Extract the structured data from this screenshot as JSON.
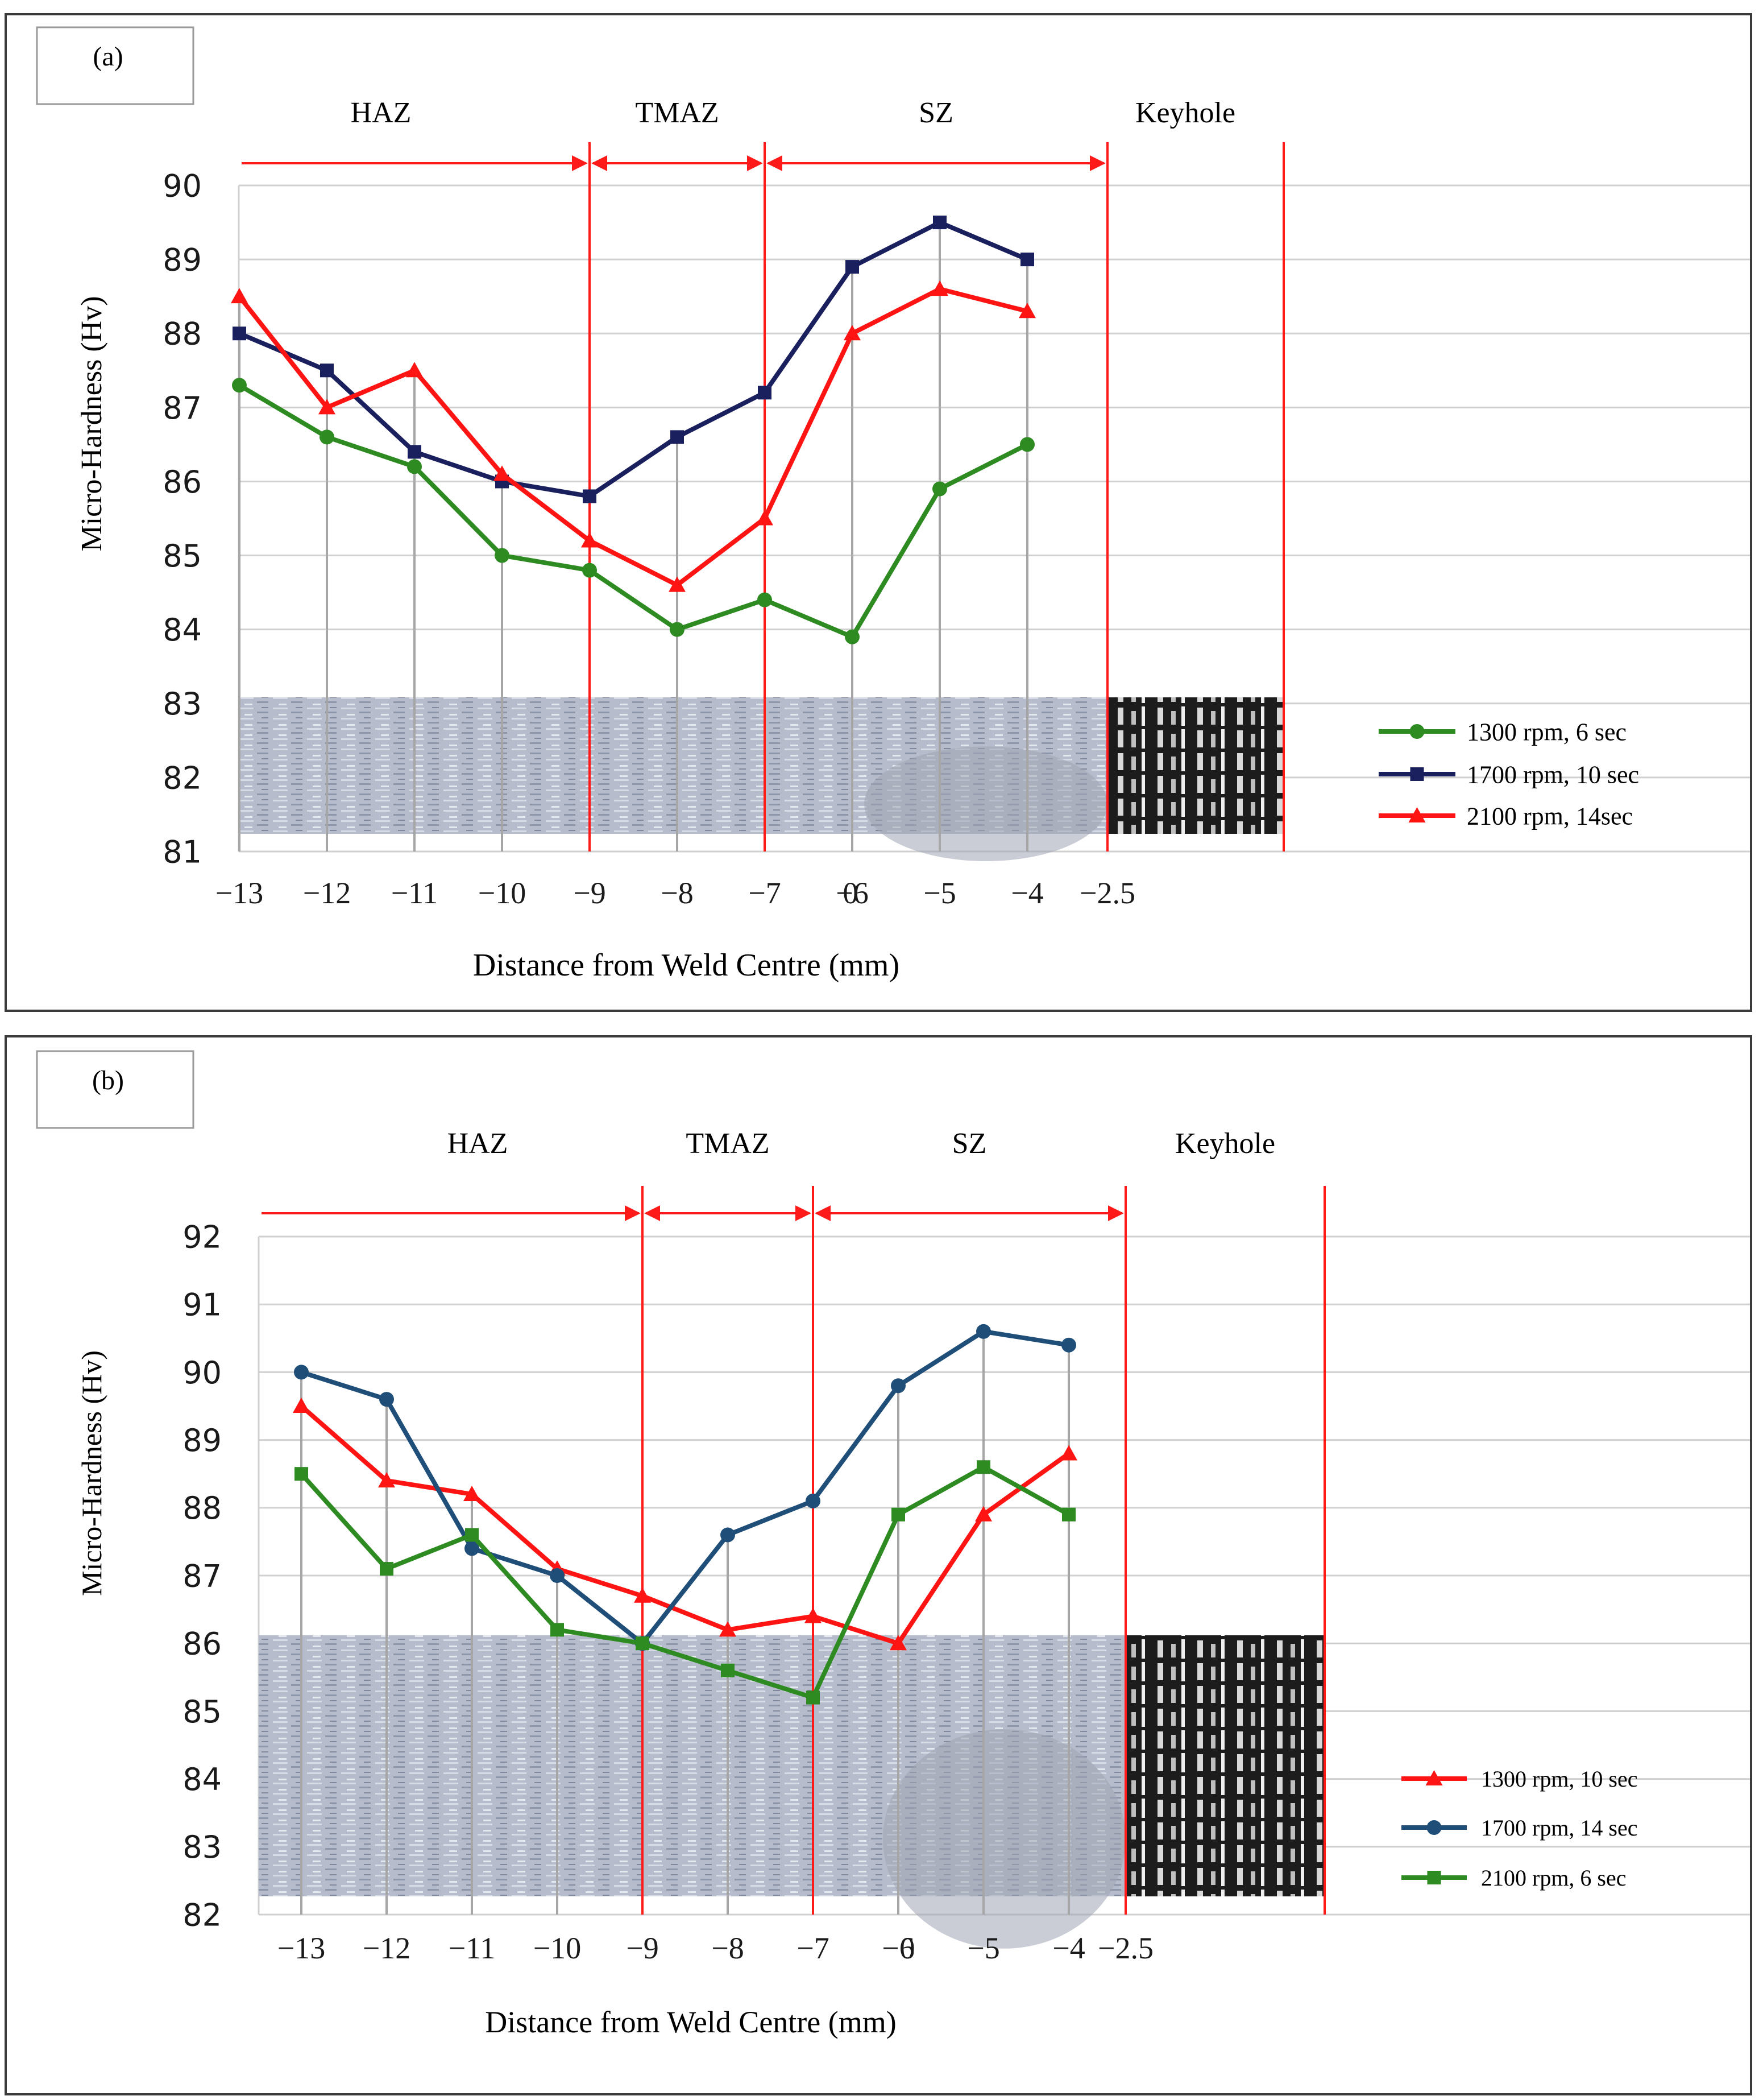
{
  "chart_data": [
    {
      "type": "line",
      "panel_label": "(a)",
      "xlabel": "Distance from Weld Centre (mm)",
      "ylabel": "Micro-Hardness (Hv)",
      "ylim": [
        81,
        90
      ],
      "yticks": [
        81,
        82,
        83,
        84,
        85,
        86,
        87,
        88,
        89,
        90
      ],
      "x_tick_labels": [
        "−13",
        "−12",
        "−11",
        "−10",
        "−9",
        "−8",
        "−7",
        "−6",
        "−5",
        "−4",
        "−2.5",
        "0"
      ],
      "x": [
        -13,
        -12,
        -11,
        -10,
        -9,
        -8,
        -7,
        -6,
        -5,
        -4
      ],
      "zones": [
        {
          "label": "HAZ",
          "from": -13,
          "to": -9
        },
        {
          "label": "TMAZ",
          "from": -9,
          "to": -7
        },
        {
          "label": "SZ",
          "from": -7,
          "to": -2.5
        },
        {
          "label": "Keyhole",
          "from": -2.5,
          "to": 0
        }
      ],
      "series": [
        {
          "name": "1300 rpm, 6 sec",
          "color": "#2e8b22",
          "marker": "circle",
          "values": [
            87.3,
            86.6,
            86.2,
            85.0,
            84.8,
            84.0,
            84.4,
            83.9,
            85.9,
            86.5
          ]
        },
        {
          "name": "1700 rpm, 10 sec",
          "color": "#1a1f5e",
          "marker": "square",
          "values": [
            88.0,
            87.5,
            86.4,
            86.0,
            85.8,
            86.6,
            87.2,
            88.9,
            89.5,
            89.0
          ]
        },
        {
          "name": "2100 rpm, 14sec",
          "color": "#ff1414",
          "marker": "triangle",
          "values": [
            88.5,
            87.0,
            87.5,
            86.1,
            85.2,
            84.6,
            85.5,
            88.0,
            88.6,
            88.3
          ]
        }
      ]
    },
    {
      "type": "line",
      "panel_label": "(b)",
      "xlabel": "Distance from Weld Centre (mm)",
      "ylabel": "Micro-Hardness (Hv)",
      "ylim": [
        82,
        92
      ],
      "yticks": [
        82,
        83,
        84,
        85,
        86,
        87,
        88,
        89,
        90,
        91,
        92
      ],
      "x_tick_labels": [
        "−13",
        "−12",
        "−11",
        "−10",
        "−9",
        "−8",
        "−7",
        "−6",
        "−5",
        "−4",
        "−2.5",
        "0"
      ],
      "x": [
        -13,
        -12,
        -11,
        -10,
        -9,
        -8,
        -7,
        -6,
        -5,
        -4
      ],
      "zones": [
        {
          "label": "HAZ",
          "from": -13,
          "to": -9
        },
        {
          "label": "TMAZ",
          "from": -9,
          "to": -7
        },
        {
          "label": "SZ",
          "from": -7,
          "to": -2.5
        },
        {
          "label": "Keyhole",
          "from": -2.5,
          "to": 0
        }
      ],
      "series": [
        {
          "name": "1300 rpm, 10 sec",
          "color": "#ff1414",
          "marker": "triangle",
          "values": [
            89.5,
            88.4,
            88.2,
            87.1,
            86.7,
            86.2,
            86.4,
            86.0,
            87.9,
            88.8
          ]
        },
        {
          "name": "1700 rpm, 14 sec",
          "color": "#1f4e79",
          "marker": "circle",
          "values": [
            90.0,
            89.6,
            87.4,
            87.0,
            86.0,
            87.6,
            88.1,
            89.8,
            90.6,
            90.4
          ]
        },
        {
          "name": "2100 rpm, 6 sec",
          "color": "#2e8b22",
          "marker": "square",
          "values": [
            88.5,
            87.1,
            87.6,
            86.2,
            86.0,
            85.6,
            85.2,
            87.9,
            88.6,
            87.9
          ]
        }
      ]
    }
  ]
}
